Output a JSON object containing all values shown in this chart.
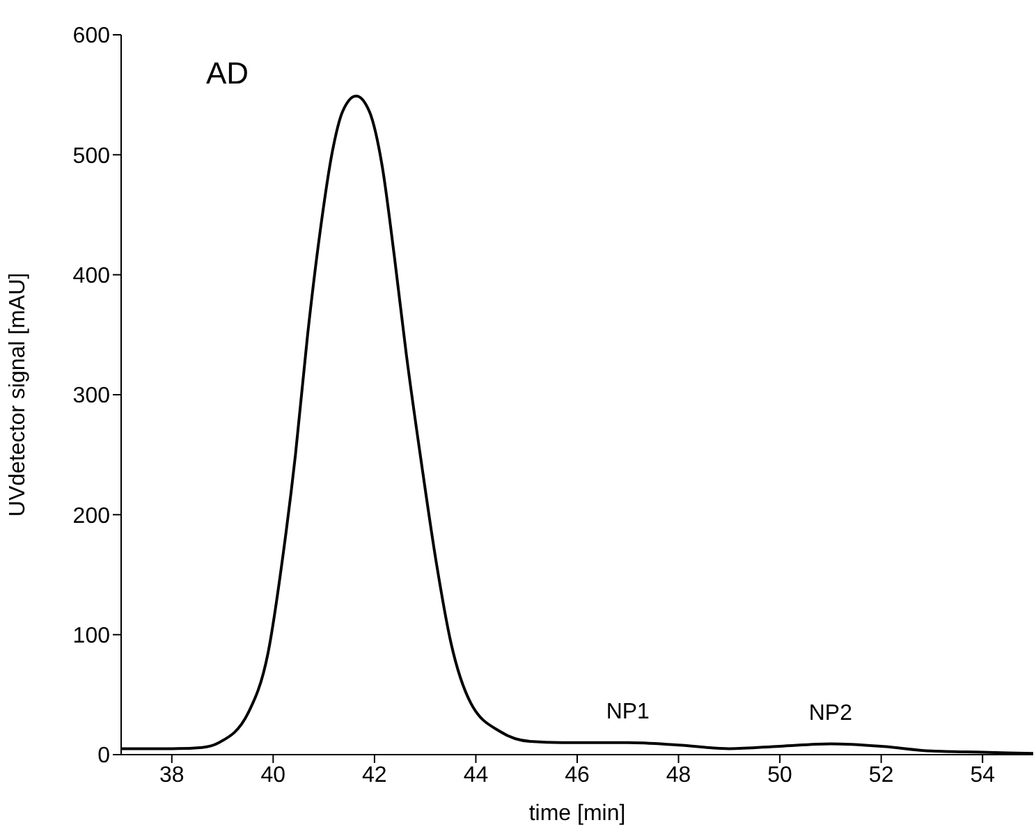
{
  "chart_data": {
    "type": "line",
    "xlabel": "time [min]",
    "ylabel": "UVdetector signal [mAU]",
    "xlim": [
      37,
      55
    ],
    "xticks": [
      38,
      40,
      42,
      44,
      46,
      48,
      50,
      52,
      54
    ],
    "ylim": [
      0,
      600
    ],
    "yticks": [
      0,
      100,
      200,
      300,
      400,
      500,
      600
    ],
    "grid": false,
    "legend": false,
    "marker": "none",
    "line_style": "solid",
    "annotations": [
      "AD",
      {
        "text": "NP1",
        "x": 47,
        "y": 10
      },
      {
        "text": "NP2",
        "x": 51,
        "y": 9
      }
    ],
    "series": [
      {
        "color": "#000000",
        "x": [
          37,
          38,
          38.6,
          38.93,
          39.51,
          39.9,
          40.2,
          40.44,
          40.68,
          40.93,
          41.17,
          41.37,
          41.64,
          41.9,
          42.15,
          42.39,
          42.63,
          42.93,
          43.22,
          43.51,
          43.9,
          44.49,
          45.07,
          45.7,
          46,
          47,
          48,
          49,
          50,
          51,
          52,
          53,
          54,
          55
        ],
        "values": [
          5,
          5,
          6,
          10,
          35,
          85,
          168,
          250,
          350,
          437,
          503,
          536,
          549,
          536,
          491,
          416,
          333,
          242,
          160,
          93,
          43,
          19,
          11,
          10,
          10,
          10,
          8,
          5,
          7,
          9,
          7,
          3,
          2,
          1
        ]
      }
    ]
  }
}
